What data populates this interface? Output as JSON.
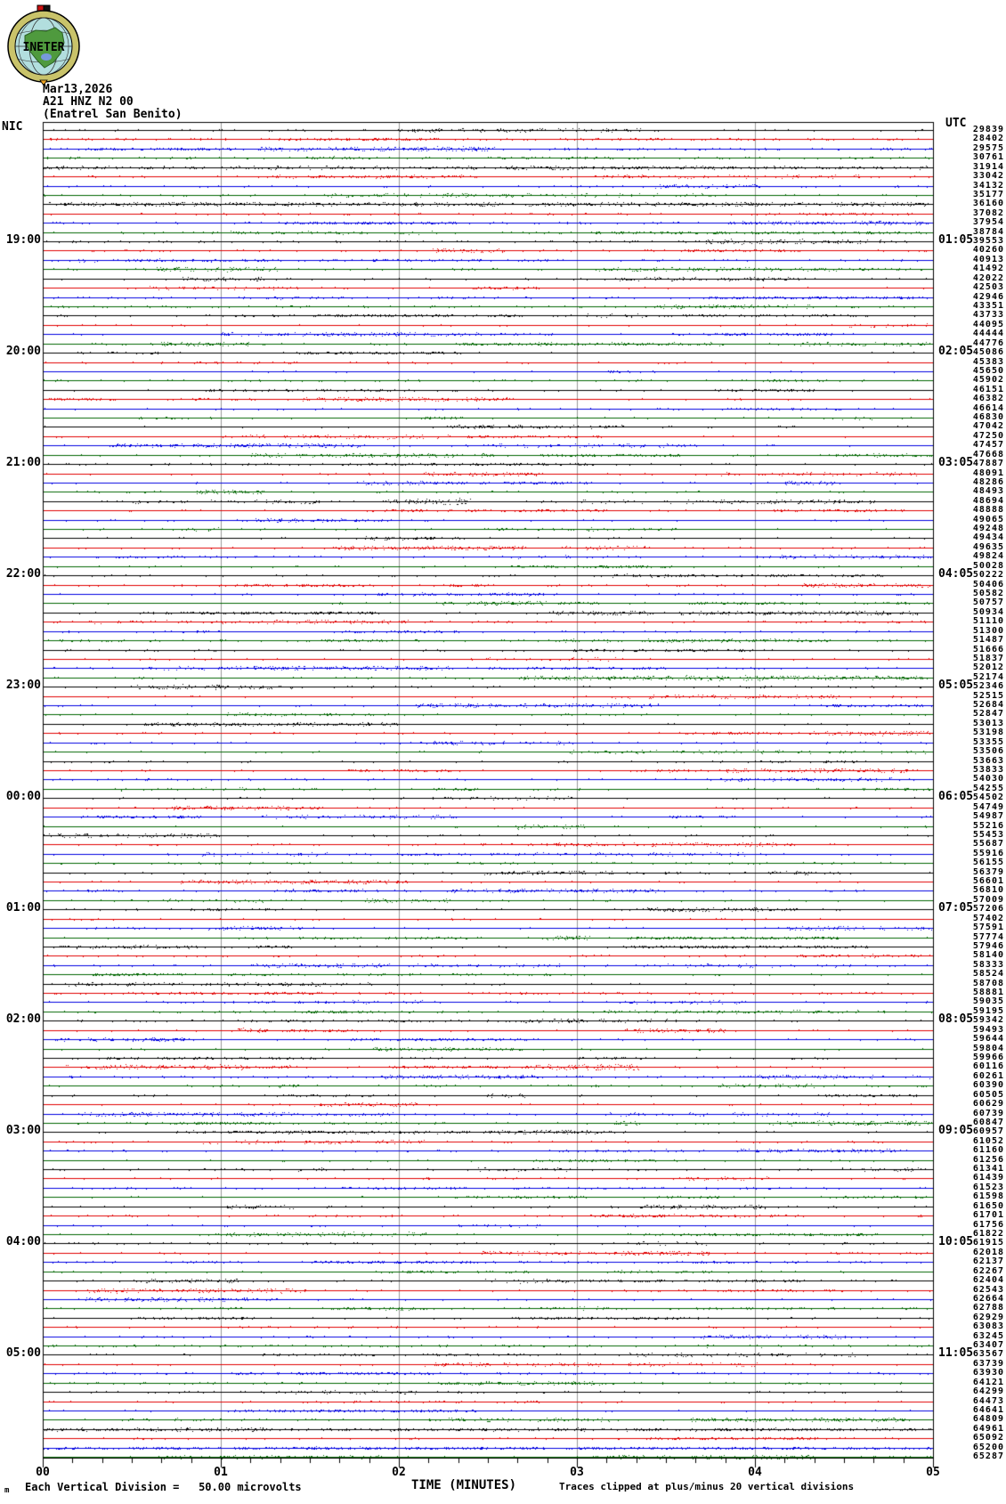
{
  "header": {
    "logo_text": "INETER",
    "date": "Mar13,2026",
    "station_code": "A21 HNZ N2 00",
    "station_name": "(Enatrel San Benito)",
    "left_timezone": "NIC",
    "right_timezone": "UTC"
  },
  "left_time_labels": [
    "19:00",
    "20:00",
    "21:00",
    "22:00",
    "23:00",
    "00:00",
    "01:00",
    "02:00",
    "03:00",
    "04:00",
    "05:00"
  ],
  "right_time_labels": [
    "01:05",
    "02:05",
    "03:05",
    "04:05",
    "05:05",
    "06:05",
    "07:05",
    "08:05",
    "09:05",
    "10:05",
    "11:05"
  ],
  "x_axis": {
    "ticks": [
      "00",
      "01",
      "02",
      "03",
      "04",
      "05"
    ],
    "title": "TIME (MINUTES)"
  },
  "footer": {
    "corner_glyph": "m",
    "scale_note": "Each Vertical Division =   50.00 microvolts",
    "clip_note": "Traces clipped at plus/minus 20 vertical divisions"
  },
  "colors": {
    "black": "#000000",
    "red": "#e00000",
    "blue": "#0000e0",
    "green": "#006600",
    "grid": "#999999",
    "logo_ring": "#c9c36a",
    "logo_sea": "#b2dede",
    "logo_land": "#4f9a3e",
    "logo_lake": "#7799dd"
  },
  "trace_count_labels": [
    "29839",
    "28402",
    "29575",
    "30761",
    "31914",
    "33042",
    "34132",
    "35177",
    "36160",
    "37082",
    "37954",
    "38784",
    "39553",
    "40260",
    "40913",
    "41492",
    "42022",
    "42503",
    "42946",
    "43351",
    "43733",
    "44095",
    "44444",
    "44776",
    "45086",
    "45383",
    "45650",
    "45902",
    "46151",
    "46382",
    "46614",
    "46830",
    "47042",
    "47250",
    "47457",
    "47668",
    "47887",
    "48091",
    "48286",
    "48493",
    "48694",
    "48888",
    "49065",
    "49248",
    "49434",
    "49635",
    "49824",
    "50028",
    "50222",
    "50406",
    "50582",
    "50757",
    "50934",
    "51110",
    "51300",
    "51487",
    "51666",
    "51837",
    "52012",
    "52174",
    "52346",
    "52515",
    "52684",
    "52847",
    "53013",
    "53198",
    "53355",
    "53506",
    "53663",
    "53833",
    "54030",
    "54255",
    "54502",
    "54749",
    "54987",
    "55216",
    "55453",
    "55687",
    "55916",
    "56155",
    "56379",
    "56601",
    "56810",
    "57009",
    "57206",
    "57402",
    "57591",
    "57774",
    "57946",
    "58140",
    "58333",
    "58524",
    "58708",
    "58881",
    "59035",
    "59195",
    "59342",
    "59493",
    "59644",
    "59804",
    "59966",
    "60116",
    "60261",
    "60390",
    "60505",
    "60629",
    "60739",
    "60847",
    "60957",
    "61052",
    "61160",
    "61256",
    "61341",
    "61439",
    "61523",
    "61598",
    "61650",
    "61701",
    "61756",
    "61822",
    "61915",
    "62018",
    "62137",
    "62267",
    "62404",
    "62543",
    "62664",
    "62788",
    "62929",
    "63083",
    "63245",
    "63407",
    "63567",
    "63739",
    "63930",
    "64121",
    "64299",
    "64473",
    "64641",
    "64809",
    "64961",
    "65092",
    "65200",
    "65287"
  ],
  "chart_data": {
    "type": "line",
    "subtype": "helicorder-seismogram",
    "title": "A21 HNZ N2 00 (Enatrel San Benito) Mar13,2026",
    "xlabel": "TIME (MINUTES)",
    "x_ticks": [
      "00",
      "01",
      "02",
      "03",
      "04",
      "05"
    ],
    "x_range_minutes": [
      0,
      5
    ],
    "minutes_per_line": 5,
    "lines_per_hour": 12,
    "num_lines": 144,
    "trace_color_cycle": [
      "black",
      "red",
      "blue",
      "green"
    ],
    "local_hour_labels_left": [
      "19:00",
      "20:00",
      "21:00",
      "22:00",
      "23:00",
      "00:00",
      "01:00",
      "02:00",
      "03:00",
      "04:00",
      "05:00"
    ],
    "utc_hour_labels_right": [
      "01:05",
      "02:05",
      "03:05",
      "04:05",
      "05:05",
      "06:05",
      "07:05",
      "08:05",
      "09:05",
      "10:05",
      "11:05"
    ],
    "hour_label_line_indices": [
      12,
      24,
      36,
      48,
      60,
      72,
      84,
      96,
      108,
      120,
      132
    ],
    "per_line_counter_values": [
      29839,
      28402,
      29575,
      30761,
      31914,
      33042,
      34132,
      35177,
      36160,
      37082,
      37954,
      38784,
      39553,
      40260,
      40913,
      41492,
      42022,
      42503,
      42946,
      43351,
      43733,
      44095,
      44444,
      44776,
      45086,
      45383,
      45650,
      45902,
      46151,
      46382,
      46614,
      46830,
      47042,
      47250,
      47457,
      47668,
      47887,
      48091,
      48286,
      48493,
      48694,
      48888,
      49065,
      49248,
      49434,
      49635,
      49824,
      50028,
      50222,
      50406,
      50582,
      50757,
      50934,
      51110,
      51300,
      51487,
      51666,
      51837,
      52012,
      52174,
      52346,
      52515,
      52684,
      52847,
      53013,
      53198,
      53355,
      53506,
      53663,
      53833,
      54030,
      54255,
      54502,
      54749,
      54987,
      55216,
      55453,
      55687,
      55916,
      56155,
      56379,
      56601,
      56810,
      57009,
      57206,
      57402,
      57591,
      57774,
      57946,
      58140,
      58333,
      58524,
      58708,
      58881,
      59035,
      59195,
      59342,
      59493,
      59644,
      59804,
      59966,
      60116,
      60261,
      60390,
      60505,
      60629,
      60739,
      60847,
      60957,
      61052,
      61160,
      61256,
      61341,
      61439,
      61523,
      61598,
      61650,
      61701,
      61756,
      61822,
      61915,
      62018,
      62137,
      62267,
      62404,
      62543,
      62664,
      62788,
      62929,
      63083,
      63245,
      63407,
      63567,
      63739,
      63930,
      64121,
      64299,
      64473,
      64641,
      64809,
      64961,
      65092,
      65200,
      65287
    ],
    "vertical_division_microvolts": 50.0,
    "clip_divisions": 20,
    "grid": true,
    "grid_minor_subdivisions_per_minute": 6
  }
}
